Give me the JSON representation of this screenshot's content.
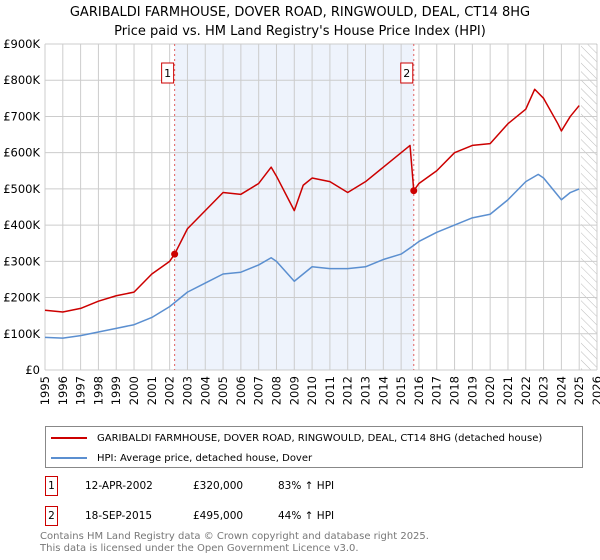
{
  "title": "GARIBALDI FARMHOUSE, DOVER ROAD, RINGWOULD, DEAL, CT14 8HG",
  "subtitle": "Price paid vs. HM Land Registry's House Price Index (HPI)",
  "chart_data": {
    "type": "line",
    "ylim": [
      0,
      900000
    ],
    "xlim": [
      1995,
      2026
    ],
    "yticks": [
      {
        "v": 0,
        "l": "£0"
      },
      {
        "v": 100000,
        "l": "£100K"
      },
      {
        "v": 200000,
        "l": "£200K"
      },
      {
        "v": 300000,
        "l": "£300K"
      },
      {
        "v": 400000,
        "l": "£400K"
      },
      {
        "v": 500000,
        "l": "£500K"
      },
      {
        "v": 600000,
        "l": "£600K"
      },
      {
        "v": 700000,
        "l": "£700K"
      },
      {
        "v": 800000,
        "l": "£800K"
      },
      {
        "v": 900000,
        "l": "£900K"
      }
    ],
    "xticks": [
      "1995",
      "1996",
      "1997",
      "1998",
      "1999",
      "2000",
      "2001",
      "2002",
      "2003",
      "2004",
      "2005",
      "2006",
      "2007",
      "2008",
      "2009",
      "2010",
      "2011",
      "2012",
      "2013",
      "2014",
      "2015",
      "2016",
      "2017",
      "2018",
      "2019",
      "2020",
      "2021",
      "2022",
      "2023",
      "2024",
      "2025",
      "2026"
    ],
    "grid": true,
    "shaded_range": [
      2002.28,
      2015.71
    ],
    "forecast_hatch_from": 2025.1,
    "series": [
      {
        "name": "GARIBALDI FARMHOUSE, DOVER ROAD, RINGWOULD, DEAL, CT14 8HG (detached house)",
        "color": "#cc0000",
        "x": [
          1995,
          1996,
          1997,
          1998,
          1999,
          2000,
          2001,
          2002,
          2002.28,
          2003,
          2004,
          2005,
          2006,
          2007,
          2007.7,
          2008,
          2009,
          2009.5,
          2010,
          2011,
          2012,
          2013,
          2014,
          2015,
          2015.5,
          2015.71,
          2016,
          2017,
          2018,
          2019,
          2020,
          2021,
          2022,
          2022.5,
          2023,
          2023.8,
          2024,
          2024.5,
          2025
        ],
        "y": [
          165000,
          160000,
          170000,
          190000,
          205000,
          215000,
          265000,
          300000,
          320000,
          390000,
          440000,
          490000,
          485000,
          515000,
          560000,
          535000,
          440000,
          510000,
          530000,
          520000,
          490000,
          520000,
          560000,
          600000,
          620000,
          495000,
          515000,
          550000,
          600000,
          620000,
          625000,
          680000,
          720000,
          775000,
          750000,
          680000,
          660000,
          700000,
          730000
        ]
      },
      {
        "name": "HPI: Average price, detached house, Dover",
        "color": "#5b8fd0",
        "x": [
          1995,
          1996,
          1997,
          1998,
          1999,
          2000,
          2001,
          2002,
          2003,
          2004,
          2005,
          2006,
          2007,
          2007.7,
          2008,
          2009,
          2009.5,
          2010,
          2011,
          2012,
          2013,
          2014,
          2015,
          2015.71,
          2016,
          2017,
          2018,
          2019,
          2020,
          2021,
          2022,
          2022.7,
          2023,
          2024,
          2024.5,
          2025
        ],
        "y": [
          90000,
          88000,
          95000,
          105000,
          115000,
          125000,
          145000,
          175000,
          215000,
          240000,
          265000,
          270000,
          290000,
          310000,
          300000,
          245000,
          265000,
          285000,
          280000,
          280000,
          285000,
          305000,
          320000,
          344000,
          355000,
          380000,
          400000,
          420000,
          430000,
          470000,
          520000,
          540000,
          530000,
          470000,
          490000,
          500000
        ]
      }
    ],
    "sales": [
      {
        "label": "1",
        "x": 2002.28,
        "y": 320000,
        "date": "12-APR-2002",
        "price": "£320,000",
        "hpi": "83% ↑ HPI"
      },
      {
        "label": "2",
        "x": 2015.71,
        "y": 495000,
        "date": "18-SEP-2015",
        "price": "£495,000",
        "hpi": "44% ↑ HPI"
      }
    ]
  },
  "footer": [
    "Contains HM Land Registry data © Crown copyright and database right 2025.",
    "This data is licensed under the Open Government Licence v3.0."
  ]
}
